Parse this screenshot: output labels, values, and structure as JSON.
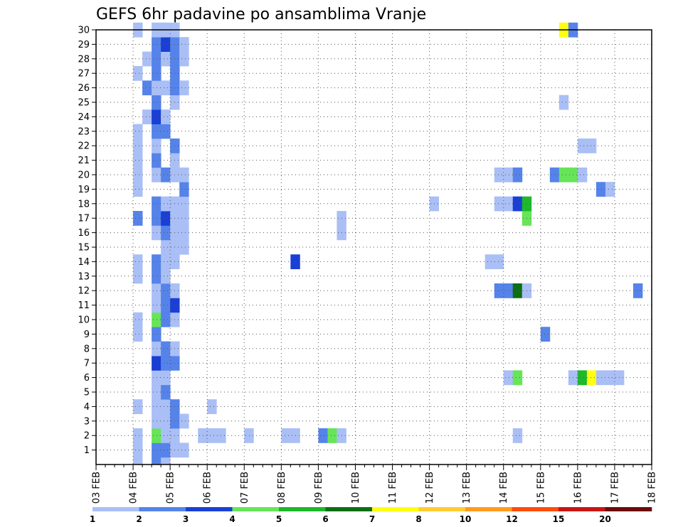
{
  "chart_data": {
    "type": "heatmap",
    "title": "GEFS 6hr padavine po ansamblima Vranje",
    "xlabel": "",
    "ylabel": "",
    "x_start": "03 FEB 00Z",
    "x_step_hours": 6,
    "x_range_days": [
      0,
      15
    ],
    "x_ticks": [
      "03 FEB",
      "04 FEB",
      "05 FEB",
      "06 FEB",
      "07 FEB",
      "08 FEB",
      "09 FEB",
      "10 FEB",
      "11 FEB",
      "12 FEB",
      "13 FEB",
      "14 FEB",
      "15 FEB",
      "16 FEB",
      "17 FEB",
      "18 FEB"
    ],
    "y_ticks": [
      1,
      2,
      3,
      4,
      5,
      6,
      7,
      8,
      9,
      10,
      11,
      12,
      13,
      14,
      15,
      16,
      17,
      18,
      19,
      20,
      21,
      22,
      23,
      24,
      25,
      26,
      27,
      28,
      29,
      30
    ],
    "y_range": [
      0,
      30
    ],
    "grid": true,
    "colorbar": {
      "labels": [
        "1",
        "2",
        "3",
        "4",
        "5",
        "6",
        "7",
        "8",
        "10",
        "12",
        "15",
        "20"
      ],
      "colors": [
        "#aabff5",
        "#5583ea",
        "#1a3fd5",
        "#66e558",
        "#1db82b",
        "#0d6e14",
        "#ffff10",
        "#ffcc33",
        "#ff9b1f",
        "#ff4d0a",
        "#c81616",
        "#6b0c0c"
      ]
    },
    "cells": [
      [
        0,
        1.25,
        1
      ],
      [
        0,
        1.75,
        2
      ],
      [
        0,
        2,
        1
      ],
      [
        1,
        1.25,
        1
      ],
      [
        1,
        1.75,
        2
      ],
      [
        1,
        2,
        2
      ],
      [
        1,
        2.25,
        1
      ],
      [
        1,
        2.5,
        1
      ],
      [
        2,
        1.25,
        1
      ],
      [
        2,
        1.75,
        4
      ],
      [
        2,
        2,
        1
      ],
      [
        2,
        2.25,
        1
      ],
      [
        2,
        3,
        1
      ],
      [
        2,
        3.25,
        1
      ],
      [
        2,
        3.5,
        1
      ],
      [
        2,
        4.25,
        1
      ],
      [
        2,
        5.25,
        1
      ],
      [
        2,
        5.5,
        1
      ],
      [
        2,
        6.25,
        2
      ],
      [
        2,
        6.5,
        4
      ],
      [
        2,
        6.75,
        1
      ],
      [
        2,
        11.5,
        1
      ],
      [
        3,
        1.75,
        1
      ],
      [
        3,
        2,
        1
      ],
      [
        3,
        2.25,
        2
      ],
      [
        3,
        2.5,
        1
      ],
      [
        4,
        1.25,
        1
      ],
      [
        4,
        1.75,
        1
      ],
      [
        4,
        2,
        1
      ],
      [
        4,
        2.25,
        2
      ],
      [
        4,
        3.25,
        1
      ],
      [
        5,
        1.75,
        1
      ],
      [
        5,
        2,
        2
      ],
      [
        6,
        1.75,
        1
      ],
      [
        6,
        2,
        1
      ],
      [
        6,
        11.25,
        1
      ],
      [
        6,
        11.5,
        4
      ],
      [
        6,
        13,
        1
      ],
      [
        6,
        13.25,
        5
      ],
      [
        6,
        13.5,
        7
      ],
      [
        6,
        13.75,
        1
      ],
      [
        6,
        14,
        1
      ],
      [
        6,
        14.25,
        1
      ],
      [
        7,
        1.75,
        3
      ],
      [
        7,
        2,
        2
      ],
      [
        7,
        2.25,
        2
      ],
      [
        8,
        1.75,
        1
      ],
      [
        8,
        2,
        2
      ],
      [
        8,
        2.25,
        1
      ],
      [
        9,
        1.25,
        1
      ],
      [
        9,
        1.75,
        2
      ],
      [
        9,
        12.25,
        2
      ],
      [
        10,
        1.25,
        1
      ],
      [
        10,
        1.75,
        4
      ],
      [
        10,
        2,
        2
      ],
      [
        10,
        2.25,
        1
      ],
      [
        11,
        1.75,
        1
      ],
      [
        11,
        2,
        2
      ],
      [
        11,
        2.25,
        3
      ],
      [
        12,
        1.75,
        1
      ],
      [
        12,
        2,
        2
      ],
      [
        12,
        2.25,
        1
      ],
      [
        12,
        11,
        2
      ],
      [
        12,
        11.25,
        2
      ],
      [
        12,
        11.5,
        6
      ],
      [
        12,
        11.75,
        1
      ],
      [
        12,
        14.75,
        2
      ],
      [
        13,
        1.25,
        1
      ],
      [
        13,
        1.75,
        2
      ],
      [
        13,
        2,
        1
      ],
      [
        14,
        1.25,
        1
      ],
      [
        14,
        1.75,
        2
      ],
      [
        14,
        2,
        1
      ],
      [
        14,
        2.25,
        1
      ],
      [
        14,
        5.5,
        3
      ],
      [
        14,
        10.75,
        1
      ],
      [
        14,
        11,
        1
      ],
      [
        15,
        2,
        1
      ],
      [
        15,
        2.25,
        1
      ],
      [
        15,
        2.5,
        1
      ],
      [
        16,
        1.75,
        1
      ],
      [
        16,
        2,
        2
      ],
      [
        16,
        2.25,
        1
      ],
      [
        16,
        2.5,
        1
      ],
      [
        16,
        6.75,
        1
      ],
      [
        17,
        1.25,
        2
      ],
      [
        17,
        1.75,
        2
      ],
      [
        17,
        2,
        3
      ],
      [
        17,
        2.25,
        1
      ],
      [
        17,
        2.5,
        1
      ],
      [
        17,
        6.75,
        1
      ],
      [
        17,
        11.75,
        4
      ],
      [
        18,
        1.75,
        2
      ],
      [
        18,
        2,
        1
      ],
      [
        18,
        2.25,
        1
      ],
      [
        18,
        2.5,
        1
      ],
      [
        18,
        9.25,
        1
      ],
      [
        18,
        11,
        1
      ],
      [
        18,
        11.25,
        1
      ],
      [
        18,
        11.5,
        3
      ],
      [
        18,
        11.75,
        5
      ],
      [
        19,
        1.25,
        1
      ],
      [
        19,
        2.5,
        2
      ],
      [
        19,
        13.75,
        2
      ],
      [
        19,
        14,
        1
      ],
      [
        20,
        1.25,
        1
      ],
      [
        20,
        1.75,
        1
      ],
      [
        20,
        2,
        2
      ],
      [
        20,
        2.25,
        1
      ],
      [
        20,
        2.5,
        1
      ],
      [
        20,
        11,
        1
      ],
      [
        20,
        11.25,
        1
      ],
      [
        20,
        11.5,
        2
      ],
      [
        20,
        12.5,
        2
      ],
      [
        20,
        12.75,
        4
      ],
      [
        20,
        13,
        4
      ],
      [
        20,
        13.25,
        1
      ],
      [
        21,
        1.25,
        1
      ],
      [
        21,
        1.75,
        2
      ],
      [
        21,
        2.25,
        1
      ],
      [
        22,
        1.25,
        1
      ],
      [
        22,
        1.75,
        1
      ],
      [
        22,
        2.25,
        2
      ],
      [
        22,
        13.25,
        1
      ],
      [
        22,
        13.5,
        1
      ],
      [
        23,
        1.25,
        1
      ],
      [
        23,
        1.75,
        2
      ],
      [
        23,
        2,
        2
      ],
      [
        24,
        1.5,
        1
      ],
      [
        24,
        1.75,
        3
      ],
      [
        24,
        2,
        1
      ],
      [
        25,
        1.75,
        2
      ],
      [
        25,
        2.25,
        1
      ],
      [
        25,
        12.75,
        1
      ],
      [
        26,
        1.5,
        2
      ],
      [
        26,
        1.75,
        1
      ],
      [
        26,
        2,
        1
      ],
      [
        26,
        2.25,
        2
      ],
      [
        26,
        2.5,
        1
      ],
      [
        27,
        1.25,
        1
      ],
      [
        27,
        1.75,
        2
      ],
      [
        27,
        2.25,
        2
      ],
      [
        28,
        1.5,
        1
      ],
      [
        28,
        1.75,
        2
      ],
      [
        28,
        2,
        1
      ],
      [
        28,
        2.25,
        2
      ],
      [
        28,
        2.5,
        1
      ],
      [
        29,
        1.75,
        2
      ],
      [
        29,
        2,
        3
      ],
      [
        29,
        2.25,
        2
      ],
      [
        29,
        2.5,
        1
      ],
      [
        30,
        1.25,
        1
      ],
      [
        30,
        1.75,
        1
      ],
      [
        30,
        2,
        1
      ],
      [
        30,
        2.25,
        1
      ],
      [
        30,
        12.75,
        7
      ],
      [
        30,
        13,
        2
      ]
    ]
  }
}
